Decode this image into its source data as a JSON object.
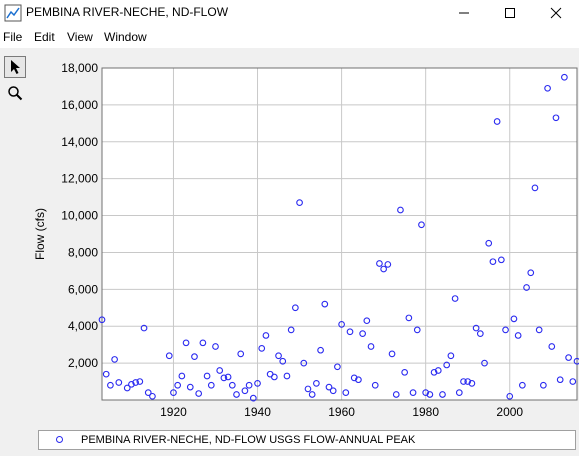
{
  "window": {
    "title": "PEMBINA RIVER-NECHE, ND-FLOW",
    "controls": [
      "minimize-icon",
      "maximize-icon",
      "close-icon"
    ]
  },
  "menu": {
    "items": [
      "File",
      "Edit",
      "View",
      "Window"
    ]
  },
  "toolbar": {
    "tools": [
      {
        "icon": "pointer-arrow-icon",
        "active": true
      },
      {
        "icon": "magnifier-icon",
        "active": false
      }
    ]
  },
  "legend": {
    "label": "PEMBINA RIVER-NECHE, ND-FLOW USGS FLOW-ANNUAL PEAK"
  },
  "colors": {
    "marker": "#2a2af0",
    "grid": "#c8c8c8",
    "plot_bg": "#ffffff"
  },
  "chart_data": {
    "type": "scatter",
    "ylabel": "Flow (cfs)",
    "xlabel": "",
    "xlim": [
      1903,
      2016
    ],
    "ylim": [
      0,
      18000
    ],
    "x_ticks": [
      1920,
      1940,
      1960,
      1980,
      2000
    ],
    "y_ticks": [
      2000,
      4000,
      6000,
      8000,
      10000,
      12000,
      14000,
      16000,
      18000
    ],
    "y_tick_labels": [
      "2,000",
      "4,000",
      "6,000",
      "8,000",
      "10,000",
      "12,000",
      "14,000",
      "16,000",
      "18,000"
    ],
    "grid": true,
    "legend_position": "bottom",
    "series": [
      {
        "name": "PEMBINA RIVER-NECHE, ND-FLOW USGS FLOW-ANNUAL PEAK",
        "points": [
          [
            1903,
            4350
          ],
          [
            1904,
            1400
          ],
          [
            1905,
            800
          ],
          [
            1906,
            2200
          ],
          [
            1907,
            950
          ],
          [
            1909,
            650
          ],
          [
            1910,
            850
          ],
          [
            1911,
            950
          ],
          [
            1912,
            1000
          ],
          [
            1913,
            3900
          ],
          [
            1914,
            400
          ],
          [
            1915,
            200
          ],
          [
            1919,
            2400
          ],
          [
            1920,
            400
          ],
          [
            1921,
            800
          ],
          [
            1922,
            1300
          ],
          [
            1923,
            3100
          ],
          [
            1924,
            700
          ],
          [
            1925,
            2350
          ],
          [
            1926,
            350
          ],
          [
            1927,
            3100
          ],
          [
            1928,
            1300
          ],
          [
            1929,
            800
          ],
          [
            1930,
            2900
          ],
          [
            1931,
            1600
          ],
          [
            1932,
            1200
          ],
          [
            1933,
            1250
          ],
          [
            1934,
            800
          ],
          [
            1935,
            300
          ],
          [
            1936,
            2500
          ],
          [
            1937,
            500
          ],
          [
            1938,
            800
          ],
          [
            1939,
            100
          ],
          [
            1940,
            900
          ],
          [
            1941,
            2800
          ],
          [
            1942,
            3500
          ],
          [
            1943,
            1400
          ],
          [
            1944,
            1250
          ],
          [
            1945,
            2400
          ],
          [
            1946,
            2100
          ],
          [
            1947,
            1300
          ],
          [
            1948,
            3800
          ],
          [
            1949,
            5000
          ],
          [
            1950,
            10700
          ],
          [
            1951,
            2000
          ],
          [
            1952,
            600
          ],
          [
            1953,
            300
          ],
          [
            1954,
            900
          ],
          [
            1955,
            2700
          ],
          [
            1956,
            5200
          ],
          [
            1957,
            700
          ],
          [
            1958,
            500
          ],
          [
            1959,
            1800
          ],
          [
            1960,
            4100
          ],
          [
            1961,
            400
          ],
          [
            1962,
            3700
          ],
          [
            1963,
            1200
          ],
          [
            1964,
            1100
          ],
          [
            1965,
            3600
          ],
          [
            1966,
            4300
          ],
          [
            1967,
            2900
          ],
          [
            1968,
            800
          ],
          [
            1969,
            7400
          ],
          [
            1970,
            7100
          ],
          [
            1971,
            7350
          ],
          [
            1972,
            2500
          ],
          [
            1973,
            300
          ],
          [
            1974,
            10300
          ],
          [
            1975,
            1500
          ],
          [
            1976,
            4450
          ],
          [
            1977,
            400
          ],
          [
            1978,
            3800
          ],
          [
            1979,
            9500
          ],
          [
            1980,
            400
          ],
          [
            1981,
            300
          ],
          [
            1982,
            1500
          ],
          [
            1983,
            1600
          ],
          [
            1984,
            300
          ],
          [
            1985,
            1900
          ],
          [
            1986,
            2400
          ],
          [
            1987,
            5500
          ],
          [
            1988,
            400
          ],
          [
            1989,
            1000
          ],
          [
            1990,
            1000
          ],
          [
            1991,
            900
          ],
          [
            1992,
            3900
          ],
          [
            1993,
            3600
          ],
          [
            1994,
            2000
          ],
          [
            1995,
            8500
          ],
          [
            1996,
            7500
          ],
          [
            1997,
            15100
          ],
          [
            1998,
            7600
          ],
          [
            1999,
            3800
          ],
          [
            2000,
            200
          ],
          [
            2001,
            4400
          ],
          [
            2002,
            3500
          ],
          [
            2003,
            800
          ],
          [
            2004,
            6100
          ],
          [
            2005,
            6900
          ],
          [
            2006,
            11500
          ],
          [
            2007,
            3800
          ],
          [
            2008,
            800
          ],
          [
            2009,
            16900
          ],
          [
            2010,
            2900
          ],
          [
            2011,
            15300
          ],
          [
            2012,
            1100
          ],
          [
            2013,
            17500
          ],
          [
            2014,
            2300
          ],
          [
            2015,
            1000
          ],
          [
            2016,
            2100
          ]
        ]
      }
    ]
  }
}
